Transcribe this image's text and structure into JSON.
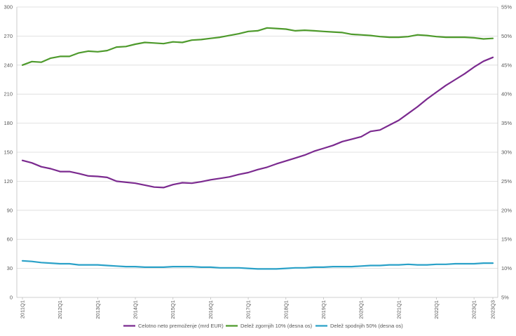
{
  "chart_data": {
    "type": "line",
    "x": [
      "2011Q1",
      "2011Q2",
      "2011Q3",
      "2011Q4",
      "2012Q1",
      "2012Q2",
      "2012Q3",
      "2012Q4",
      "2013Q1",
      "2013Q2",
      "2013Q3",
      "2013Q4",
      "2014Q1",
      "2014Q2",
      "2014Q3",
      "2014Q4",
      "2015Q1",
      "2015Q2",
      "2015Q3",
      "2015Q4",
      "2016Q1",
      "2016Q2",
      "2016Q3",
      "2016Q4",
      "2017Q1",
      "2017Q2",
      "2017Q3",
      "2017Q4",
      "2018Q1",
      "2018Q2",
      "2018Q3",
      "2018Q4",
      "2019Q1",
      "2019Q2",
      "2019Q3",
      "2019Q4",
      "2020Q1",
      "2020Q2",
      "2020Q3",
      "2020Q4",
      "2021Q1",
      "2021Q2",
      "2021Q3",
      "2021Q4",
      "2022Q1",
      "2022Q2",
      "2022Q3",
      "2022Q4",
      "2023Q1",
      "2023Q2",
      "2023Q3"
    ],
    "x_tick_labels": [
      "2011Q1",
      "2012Q1",
      "2013Q1",
      "2014Q1",
      "2015Q1",
      "2016Q1",
      "2017Q1",
      "2018Q1",
      "2019Q1",
      "2020Q1",
      "2021Q1",
      "2022Q1",
      "2023Q1",
      "2023Q3"
    ],
    "y_left": {
      "min": 0,
      "max": 300,
      "ticks": [
        0,
        30,
        60,
        90,
        120,
        150,
        180,
        210,
        240,
        270,
        300
      ]
    },
    "y_right": {
      "min": 5,
      "max": 55,
      "ticks": [
        "5%",
        "10%",
        "15%",
        "20%",
        "25%",
        "30%",
        "35%",
        "40%",
        "45%",
        "50%",
        "55%"
      ]
    },
    "grid": "horizontal",
    "legend_position": "bottom",
    "series": [
      {
        "name": "Celotno neto premoženje (mrd EUR)",
        "axis": "left",
        "color": "#7b2a8f",
        "values": [
          141.5,
          139,
          135,
          133,
          130,
          130,
          128,
          125.5,
          125,
          124,
          120,
          119,
          118,
          116,
          114,
          113.5,
          116.5,
          118.5,
          118,
          119.5,
          121.5,
          123,
          124.5,
          127,
          129,
          132,
          134.5,
          138,
          141,
          144,
          147,
          151,
          154,
          157,
          161,
          163.5,
          166,
          171.5,
          173,
          178,
          183,
          190,
          197,
          205,
          212,
          219,
          225,
          231,
          238,
          244,
          248
        ]
      },
      {
        "name": "Delež zgornjih 10% (desna os)",
        "axis": "right",
        "color": "#4e9a2c",
        "values": [
          45.0,
          45.6,
          45.5,
          46.2,
          46.5,
          46.5,
          47.1,
          47.4,
          47.3,
          47.5,
          48.1,
          48.2,
          48.6,
          48.9,
          48.8,
          48.7,
          49.0,
          48.9,
          49.3,
          49.4,
          49.6,
          49.8,
          50.1,
          50.4,
          50.8,
          50.9,
          51.4,
          51.3,
          51.2,
          50.9,
          51.0,
          50.9,
          50.8,
          50.7,
          50.6,
          50.3,
          50.2,
          50.1,
          49.9,
          49.8,
          49.8,
          49.9,
          50.2,
          50.1,
          49.9,
          49.8,
          49.8,
          49.8,
          49.7,
          49.5,
          49.6
        ]
      },
      {
        "name": "Delež spodnjih 50% (desna os)",
        "axis": "right",
        "color": "#2aa1c8",
        "values": [
          11.3,
          11.2,
          11.0,
          10.9,
          10.8,
          10.8,
          10.6,
          10.6,
          10.6,
          10.5,
          10.4,
          10.3,
          10.3,
          10.2,
          10.2,
          10.2,
          10.3,
          10.3,
          10.3,
          10.2,
          10.2,
          10.1,
          10.1,
          10.1,
          10.0,
          9.9,
          9.9,
          9.9,
          10.0,
          10.1,
          10.1,
          10.2,
          10.2,
          10.3,
          10.3,
          10.3,
          10.4,
          10.5,
          10.5,
          10.6,
          10.6,
          10.7,
          10.6,
          10.6,
          10.7,
          10.7,
          10.8,
          10.8,
          10.8,
          10.9,
          10.9
        ]
      }
    ]
  }
}
